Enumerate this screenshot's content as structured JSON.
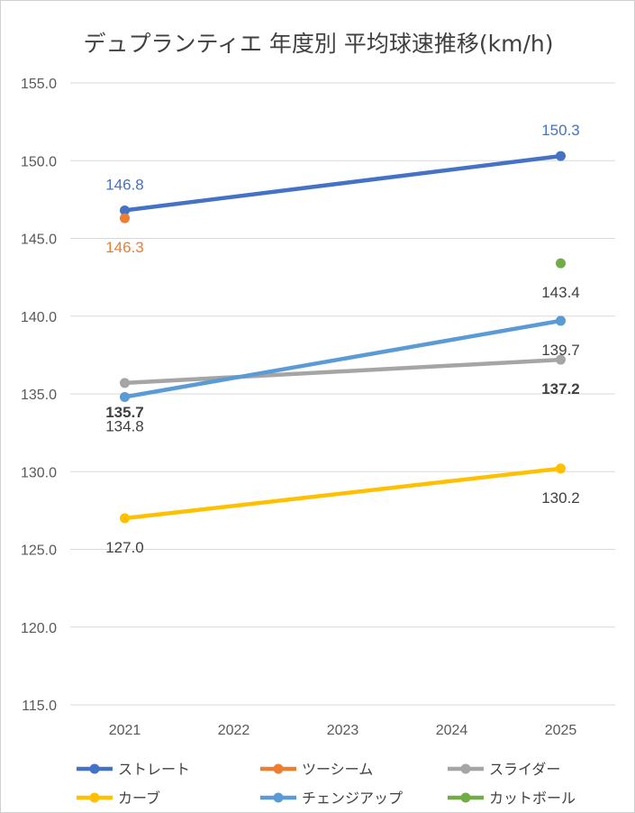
{
  "chart_data": {
    "type": "line",
    "title": "デュプランティエ 年度別 平均球速推移(km/h)",
    "xlabel": "",
    "ylabel": "",
    "categories": [
      "2021",
      "2022",
      "2023",
      "2024",
      "2025"
    ],
    "ylim": [
      115.0,
      155.0
    ],
    "yticks": [
      "155.0",
      "150.0",
      "145.0",
      "140.0",
      "135.0",
      "130.0",
      "125.0",
      "120.0",
      "115.0"
    ],
    "grid": true,
    "legend_position": "bottom",
    "series": [
      {
        "name": "ストレート",
        "color": "#4472C4",
        "values": [
          146.8,
          null,
          null,
          null,
          150.3
        ],
        "labels": [
          "146.8",
          null,
          null,
          null,
          "150.3"
        ],
        "label_color": "#4472C4",
        "label_pos": "above",
        "bold": false
      },
      {
        "name": "ツーシーム",
        "color": "#ED7D31",
        "values": [
          146.3,
          null,
          null,
          null,
          null
        ],
        "labels": [
          "146.3",
          null,
          null,
          null,
          null
        ],
        "label_color": "#ED7D31",
        "label_pos": "below",
        "bold": false
      },
      {
        "name": "スライダー",
        "color": "#A5A5A5",
        "values": [
          135.7,
          null,
          null,
          null,
          137.2
        ],
        "labels": [
          "135.7",
          null,
          null,
          null,
          "137.2"
        ],
        "label_color": "#404040",
        "label_pos": "below",
        "bold": true
      },
      {
        "name": "カーブ",
        "color": "#FFC000",
        "values": [
          127.0,
          null,
          null,
          null,
          130.2
        ],
        "labels": [
          "127.0",
          null,
          null,
          null,
          "130.2"
        ],
        "label_color": "#404040",
        "label_pos": "below",
        "bold": false
      },
      {
        "name": "チェンジアップ",
        "color": "#5B9BD5",
        "values": [
          134.8,
          null,
          null,
          null,
          139.7
        ],
        "labels": [
          "134.8",
          null,
          null,
          null,
          "139.7"
        ],
        "label_color": "#404040",
        "label_pos": "below",
        "bold": false
      },
      {
        "name": "カットボール",
        "color": "#70AD47",
        "values": [
          null,
          null,
          null,
          null,
          143.4
        ],
        "labels": [
          null,
          null,
          null,
          null,
          "143.4"
        ],
        "label_color": "#404040",
        "label_pos": "below",
        "bold": false
      }
    ]
  }
}
